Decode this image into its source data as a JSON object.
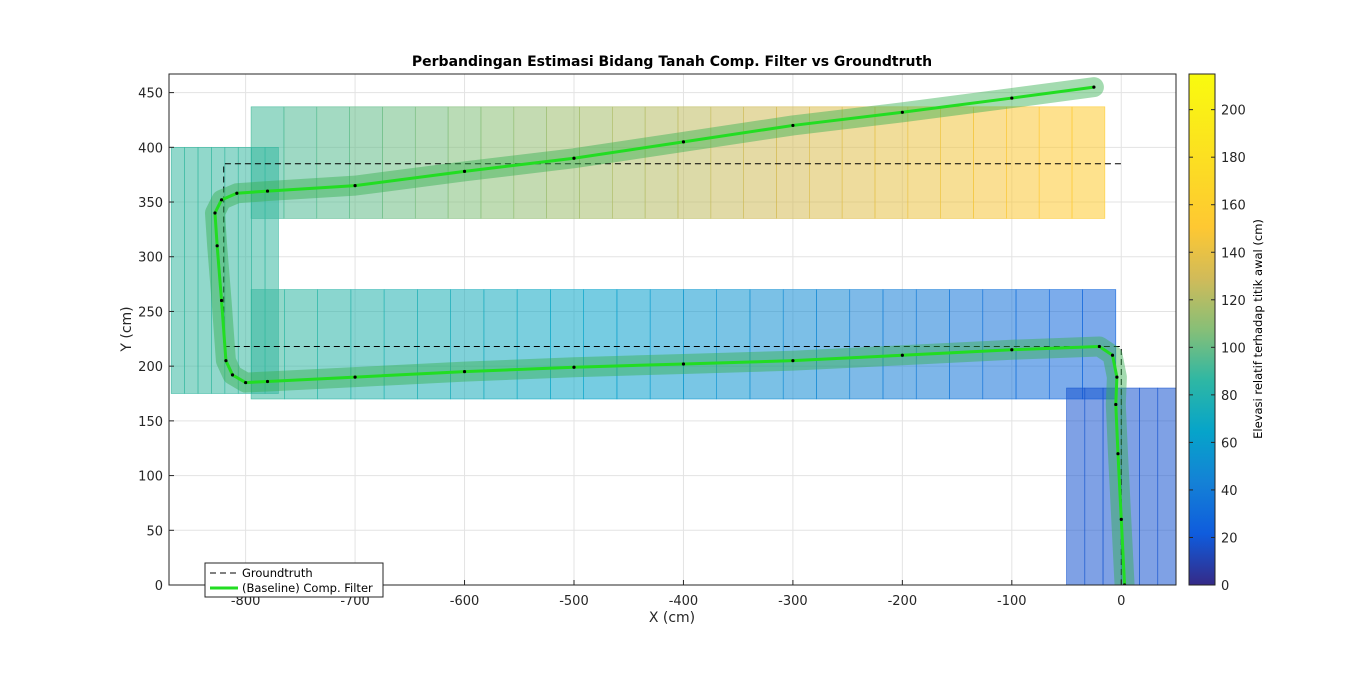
{
  "chart_data": {
    "type": "line",
    "title": "Perbandingan Estimasi Bidang Tanah Comp. Filter vs Groundtruth",
    "xlabel": "X (cm)",
    "ylabel": "Y (cm)",
    "xlim": [
      -870,
      50
    ],
    "ylim": [
      0,
      467
    ],
    "x_ticks": [
      -800,
      -700,
      -600,
      -500,
      -400,
      -300,
      -200,
      -100,
      0
    ],
    "y_ticks": [
      0,
      50,
      100,
      150,
      200,
      250,
      300,
      350,
      400,
      450
    ],
    "grid": true,
    "legend_position": "bottom-left",
    "colorbar": {
      "label": "Elevasi relatif terhadap titik awal (cm)",
      "range": [
        0,
        215
      ],
      "ticks": [
        0,
        20,
        40,
        60,
        80,
        100,
        120,
        140,
        160,
        180,
        200
      ],
      "colormap": "parula"
    },
    "series": [
      {
        "name": "Groundtruth",
        "style": "dashed",
        "color": "#000000",
        "points": [
          [
            0,
            0
          ],
          [
            0,
            218
          ],
          [
            -820,
            218
          ],
          [
            -820,
            385
          ],
          [
            0,
            385
          ]
        ]
      },
      {
        "name": "(Baseline) Comp. Filter",
        "style": "solid",
        "color": "#22dd22",
        "points": [
          [
            3,
            0
          ],
          [
            0,
            60
          ],
          [
            -3,
            120
          ],
          [
            -5,
            165
          ],
          [
            -4,
            190
          ],
          [
            -8,
            210
          ],
          [
            -20,
            218
          ],
          [
            -100,
            215
          ],
          [
            -200,
            210
          ],
          [
            -300,
            205
          ],
          [
            -400,
            202
          ],
          [
            -500,
            199
          ],
          [
            -600,
            195
          ],
          [
            -700,
            190
          ],
          [
            -780,
            186
          ],
          [
            -800,
            185
          ],
          [
            -812,
            192
          ],
          [
            -818,
            205
          ],
          [
            -822,
            260
          ],
          [
            -826,
            310
          ],
          [
            -828,
            340
          ],
          [
            -822,
            352
          ],
          [
            -808,
            358
          ],
          [
            -780,
            360
          ],
          [
            -700,
            365
          ],
          [
            -600,
            378
          ],
          [
            -500,
            390
          ],
          [
            -400,
            405
          ],
          [
            -300,
            420
          ],
          [
            -200,
            432
          ],
          [
            -100,
            445
          ],
          [
            -25,
            455
          ]
        ]
      }
    ]
  },
  "patches": [
    {
      "x": [
        -795,
        -5
      ],
      "y": [
        270,
        170
      ],
      "elev": [
        90,
        25
      ],
      "n": 26
    },
    {
      "x": [
        -795,
        -15
      ],
      "y": [
        437,
        335
      ],
      "elev": [
        90,
        155
      ],
      "n": 26
    },
    {
      "x": [
        -50,
        50
      ],
      "y": [
        180,
        0
      ],
      "elev": [
        18,
        18
      ],
      "n": 6
    },
    {
      "x": [
        -868,
        -770
      ],
      "y": [
        400,
        175
      ],
      "elev": [
        88,
        88
      ],
      "n": 8
    }
  ]
}
